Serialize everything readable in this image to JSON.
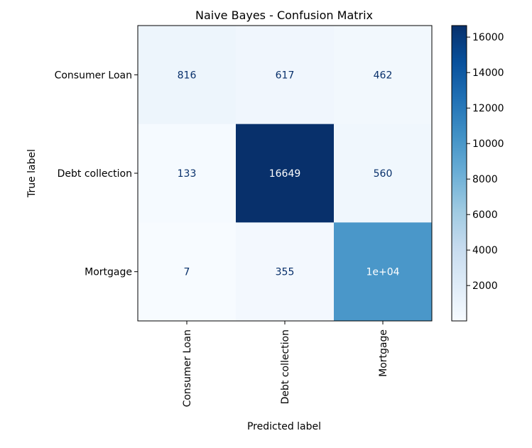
{
  "chart_data": {
    "type": "heatmap",
    "title": "Naive Bayes - Confusion Matrix",
    "xlabel": "Predicted label",
    "ylabel": "True label",
    "x_categories": [
      "Consumer Loan",
      "Debt collection",
      "Mortgage"
    ],
    "y_categories": [
      "Consumer Loan",
      "Debt collection",
      "Mortgage"
    ],
    "values": [
      [
        816,
        617,
        462
      ],
      [
        133,
        16649,
        560
      ],
      [
        7,
        355,
        10000
      ]
    ],
    "cell_labels": [
      [
        "816",
        "617",
        "462"
      ],
      [
        "133",
        "16649",
        "560"
      ],
      [
        "7",
        "355",
        "1e+04"
      ]
    ],
    "colormap": "Blues",
    "colors": {
      "low": "#f7fbff",
      "high": "#08306b"
    },
    "colorbar": {
      "range": [
        7,
        16649
      ],
      "ticks": [
        2000,
        4000,
        6000,
        8000,
        10000,
        12000,
        14000,
        16000
      ],
      "tick_labels": [
        "2000",
        "4000",
        "6000",
        "8000",
        "10000",
        "12000",
        "14000",
        "16000"
      ]
    }
  }
}
